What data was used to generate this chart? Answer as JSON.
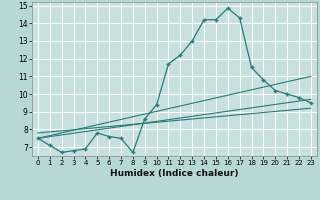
{
  "title": "",
  "xlabel": "Humidex (Indice chaleur)",
  "bg_color": "#b8d8d8",
  "plot_bg_color": "#c8e0e0",
  "line_color": "#2a7a7a",
  "grid_color": "#ffffff",
  "xlim": [
    -0.5,
    23.5
  ],
  "ylim": [
    6.5,
    15.2
  ],
  "xticks": [
    0,
    1,
    2,
    3,
    4,
    5,
    6,
    7,
    8,
    9,
    10,
    11,
    12,
    13,
    14,
    15,
    16,
    17,
    18,
    19,
    20,
    21,
    22,
    23
  ],
  "yticks": [
    7,
    8,
    9,
    10,
    11,
    12,
    13,
    14,
    15
  ],
  "main_x": [
    0,
    1,
    2,
    3,
    4,
    5,
    6,
    7,
    8,
    9,
    10,
    11,
    12,
    13,
    14,
    15,
    16,
    17,
    18,
    19,
    20,
    21,
    22,
    23
  ],
  "main_y": [
    7.5,
    7.1,
    6.7,
    6.8,
    6.9,
    7.8,
    7.6,
    7.5,
    6.7,
    8.6,
    9.4,
    11.7,
    12.2,
    13.0,
    14.2,
    14.2,
    14.85,
    14.3,
    11.5,
    10.8,
    10.2,
    10.0,
    9.8,
    9.5
  ],
  "trend1_x": [
    0,
    23
  ],
  "trend1_y": [
    7.5,
    9.7
  ],
  "trend2_x": [
    0,
    23
  ],
  "trend2_y": [
    7.5,
    11.0
  ],
  "trend3_x": [
    0,
    23
  ],
  "trend3_y": [
    7.8,
    9.2
  ]
}
